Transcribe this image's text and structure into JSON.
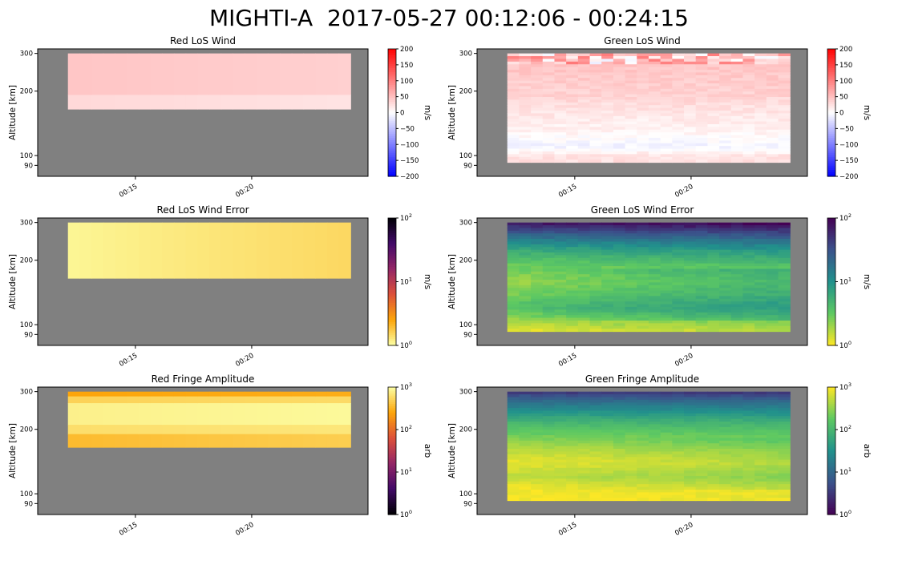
{
  "suptitle": "MIGHTI-A  2017-05-27 00:12:06 - 00:24:15",
  "colors": {
    "missing": "#808080"
  },
  "chart_data": [
    {
      "type": "heatmap",
      "title": "Red LoS Wind",
      "ylabel": "Altitude [km]",
      "yticks": [
        "300",
        "200",
        "100",
        "90"
      ],
      "ytick_values": [
        300,
        200,
        100,
        90
      ],
      "xticks": [
        "00:15",
        "00:20"
      ],
      "x": [
        "00:12:06",
        "00:24:15"
      ],
      "colorbar": {
        "label": "m/s",
        "ticks": [
          "200",
          "150",
          "100",
          "50",
          "0",
          "−50",
          "−100",
          "−150",
          "−200"
        ],
        "colormap": "bwr",
        "vmin": -200,
        "vmax": 200,
        "scale": "linear"
      },
      "data_alt_range_km": [
        165,
        300
      ],
      "missing_below_km": 165,
      "missing_above_km": 300,
      "bands": [
        {
          "from": 300,
          "to": 192,
          "value": 45
        },
        {
          "from": 192,
          "to": 165,
          "value": 30
        }
      ]
    },
    {
      "type": "heatmap",
      "title": "Green LoS Wind",
      "ylabel": "Altitude [km]",
      "yticks": [
        "300",
        "200",
        "100",
        "90"
      ],
      "ytick_values": [
        300,
        200,
        100,
        90
      ],
      "xticks": [
        "00:15",
        "00:20"
      ],
      "x": [
        "00:12:06",
        "00:24:15"
      ],
      "colorbar": {
        "label": "m/s",
        "ticks": [
          "200",
          "150",
          "100",
          "50",
          "0",
          "−50",
          "−100",
          "−150",
          "−200"
        ],
        "colormap": "bwr",
        "vmin": -200,
        "vmax": 200,
        "scale": "linear"
      },
      "data_alt_range_km": [
        93,
        300
      ],
      "missing_below_km": 93,
      "missing_above_km": 300,
      "profile_km": [
        300,
        260,
        220,
        190,
        160,
        130,
        110,
        100,
        93
      ],
      "profile_value": [
        50,
        45,
        40,
        35,
        20,
        10,
        -10,
        20,
        25
      ]
    },
    {
      "type": "heatmap",
      "title": "Red LoS Wind Error",
      "ylabel": "Altitude [km]",
      "yticks": [
        "300",
        "200",
        "100",
        "90"
      ],
      "ytick_values": [
        300,
        200,
        100,
        90
      ],
      "xticks": [
        "00:15",
        "00:20"
      ],
      "x": [
        "00:12:06",
        "00:24:15"
      ],
      "colorbar": {
        "label": "m/s",
        "ticks": [
          "10^2",
          "10^1",
          "10^0"
        ],
        "colormap": "inferno_r",
        "vmin": 1,
        "vmax": 100,
        "scale": "log"
      },
      "data_alt_range_km": [
        165,
        300
      ],
      "missing_below_km": 165,
      "missing_above_km": 300,
      "bands": [
        {
          "from": 300,
          "to": 165,
          "value": 1.1
        }
      ]
    },
    {
      "type": "heatmap",
      "title": "Green LoS Wind Error",
      "ylabel": "Altitude [km]",
      "yticks": [
        "300",
        "200",
        "100",
        "90"
      ],
      "ytick_values": [
        300,
        200,
        100,
        90
      ],
      "xticks": [
        "00:15",
        "00:20"
      ],
      "x": [
        "00:12:06",
        "00:24:15"
      ],
      "colorbar": {
        "label": "m/s",
        "ticks": [
          "10^2",
          "10^1",
          "10^0"
        ],
        "colormap": "viridis_r",
        "vmin": 1,
        "vmax": 100,
        "scale": "log"
      },
      "data_alt_range_km": [
        93,
        300
      ],
      "missing_below_km": 93,
      "missing_above_km": 300,
      "profile_km": [
        300,
        280,
        250,
        220,
        190,
        160,
        140,
        120,
        105,
        93
      ],
      "profile_value": [
        80,
        40,
        15,
        6,
        3,
        2,
        2.5,
        4,
        2,
        1.2
      ]
    },
    {
      "type": "heatmap",
      "title": "Red Fringe Amplitude",
      "ylabel": "Altitude [km]",
      "yticks": [
        "300",
        "200",
        "100",
        "90"
      ],
      "ytick_values": [
        300,
        200,
        100,
        90
      ],
      "xticks": [
        "00:15",
        "00:20"
      ],
      "x": [
        "00:12:06",
        "00:24:15"
      ],
      "colorbar": {
        "label": "arb",
        "ticks": [
          "10^3",
          "10^2",
          "10^1",
          "10^0"
        ],
        "colormap": "inferno",
        "vmin": 1,
        "vmax": 1000,
        "scale": "log"
      },
      "data_alt_range_km": [
        165,
        300
      ],
      "missing_below_km": 165,
      "missing_above_km": 300,
      "bands": [
        {
          "from": 300,
          "to": 285,
          "value": 250
        },
        {
          "from": 285,
          "to": 265,
          "value": 500
        },
        {
          "from": 265,
          "to": 210,
          "value": 800
        },
        {
          "from": 210,
          "to": 190,
          "value": 600
        },
        {
          "from": 190,
          "to": 165,
          "value": 350
        }
      ]
    },
    {
      "type": "heatmap",
      "title": "Green Fringe Amplitude",
      "ylabel": "Altitude [km]",
      "yticks": [
        "300",
        "200",
        "100",
        "90"
      ],
      "ytick_values": [
        300,
        200,
        100,
        90
      ],
      "xticks": [
        "00:15",
        "00:20"
      ],
      "x": [
        "00:12:06",
        "00:24:15"
      ],
      "colorbar": {
        "label": "arb",
        "ticks": [
          "10^3",
          "10^2",
          "10^1",
          "10^0"
        ],
        "colormap": "viridis",
        "vmin": 1,
        "vmax": 1000,
        "scale": "log"
      },
      "data_alt_range_km": [
        93,
        300
      ],
      "missing_below_km": 93,
      "missing_above_km": 300,
      "profile_km": [
        300,
        280,
        250,
        220,
        190,
        160,
        140,
        120,
        105,
        93
      ],
      "profile_value": [
        3,
        8,
        25,
        80,
        200,
        500,
        800,
        500,
        900,
        950
      ]
    }
  ]
}
